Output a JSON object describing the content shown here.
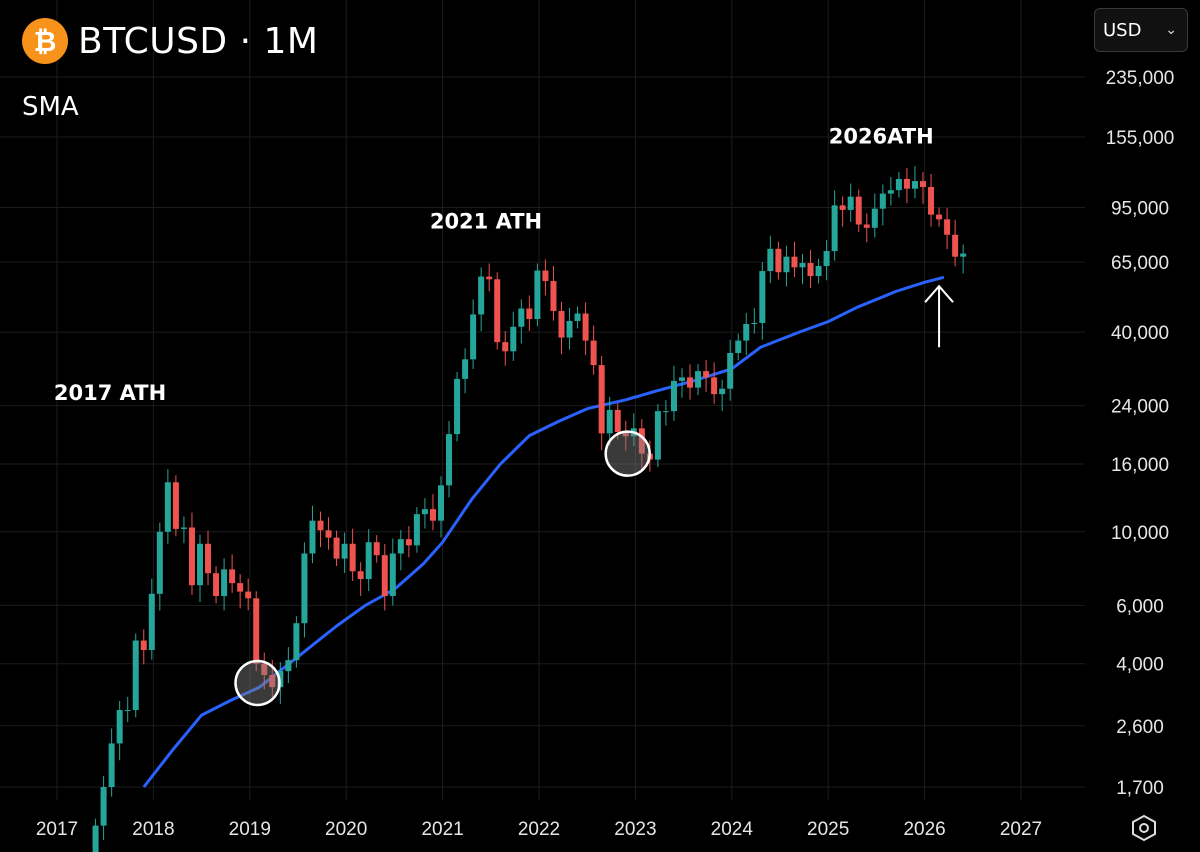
{
  "header": {
    "coin_glyph": "₿",
    "symbol": "BTCUSD · 1M",
    "indicator": "SMA"
  },
  "currency": {
    "selected": "USD"
  },
  "icons": {
    "coin": "bitcoin-icon",
    "dropdown": "chevron-down-icon",
    "settings": "gear-hex-icon"
  },
  "colors": {
    "up": "#26a69a",
    "down": "#ef5350",
    "sma": "#2962ff",
    "grid": "#1c1c1c",
    "background": "#000000"
  },
  "chart_data": {
    "type": "candlestick",
    "scale": "log",
    "title": "BTCUSD · 1M",
    "x_ticks": [
      "2017",
      "2018",
      "2019",
      "2020",
      "2021",
      "2022",
      "2023",
      "2024",
      "2025",
      "2026",
      "2027"
    ],
    "y_ticks": [
      235000,
      155000,
      95000,
      65000,
      40000,
      24000,
      16000,
      10000,
      6000,
      4000,
      2600,
      1700
    ],
    "y_tick_labels": [
      "235,000",
      "155,000",
      "95,000",
      "65,000",
      "40,000",
      "24,000",
      "16,000",
      "10,000",
      "6,000",
      "4,000",
      "2,600",
      "1,700"
    ],
    "annotations": [
      {
        "text": "2017 ATH",
        "t": 2017.55,
        "v": 25000
      },
      {
        "text": "2021 ATH",
        "t": 2021.45,
        "v": 82000
      },
      {
        "text": "2026ATH",
        "t": 2025.55,
        "v": 148000
      }
    ],
    "circle_markers": [
      {
        "t": 2019.08,
        "v": 3500
      },
      {
        "t": 2022.92,
        "v": 17200
      }
    ],
    "arrow": {
      "t": 2026.15,
      "v_from": 36000,
      "v_to": 55000
    },
    "monthly_close": [
      1300,
      1700,
      2300,
      2900,
      2900,
      4700,
      4400,
      6500,
      10000,
      14100,
      10200,
      10300,
      6900,
      9200,
      7500,
      6400,
      7700,
      7000,
      6600,
      6300,
      4000,
      3700,
      3400,
      3800,
      4100,
      5300,
      8600,
      10800,
      10100,
      9600,
      8300,
      9200,
      7600,
      7200,
      9300,
      8500,
      6400,
      8600,
      9500,
      9100,
      11300,
      11700,
      10800,
      13800,
      19700,
      28900,
      33100,
      45200,
      58800,
      57700,
      37300,
      35000,
      41500,
      47100,
      43800,
      61300,
      57000,
      46300,
      38500,
      43200,
      45500,
      37700,
      31800,
      19800,
      23300,
      20000,
      19400,
      20500,
      17200,
      16500,
      23100,
      23100,
      28500,
      29200,
      27200,
      30500,
      29200,
      26000,
      27000,
      34600,
      37700,
      42300,
      42600,
      61100,
      71300,
      60600,
      67500,
      62700,
      64600,
      59000,
      63300,
      70200,
      96400,
      93400,
      102400,
      84400,
      82500,
      94200,
      104600,
      107100,
      115800,
      108200,
      114100,
      109500,
      90400,
      87500,
      78600,
      67500,
      69000
    ],
    "sma": [
      [
        2017.9,
        1700
      ],
      [
        2018.2,
        2200
      ],
      [
        2018.5,
        2800
      ],
      [
        2018.8,
        3100
      ],
      [
        2019.1,
        3400
      ],
      [
        2019.5,
        4200
      ],
      [
        2019.9,
        5200
      ],
      [
        2020.2,
        6000
      ],
      [
        2020.5,
        6700
      ],
      [
        2020.8,
        8000
      ],
      [
        2021.0,
        9300
      ],
      [
        2021.3,
        12500
      ],
      [
        2021.6,
        16000
      ],
      [
        2021.9,
        19500
      ],
      [
        2022.2,
        21500
      ],
      [
        2022.5,
        23500
      ],
      [
        2022.9,
        25000
      ],
      [
        2023.2,
        26500
      ],
      [
        2023.6,
        28500
      ],
      [
        2024.0,
        31000
      ],
      [
        2024.3,
        36000
      ],
      [
        2024.7,
        40000
      ],
      [
        2025.0,
        43000
      ],
      [
        2025.3,
        47500
      ],
      [
        2025.7,
        53000
      ],
      [
        2026.0,
        56500
      ],
      [
        2026.2,
        58500
      ]
    ]
  }
}
